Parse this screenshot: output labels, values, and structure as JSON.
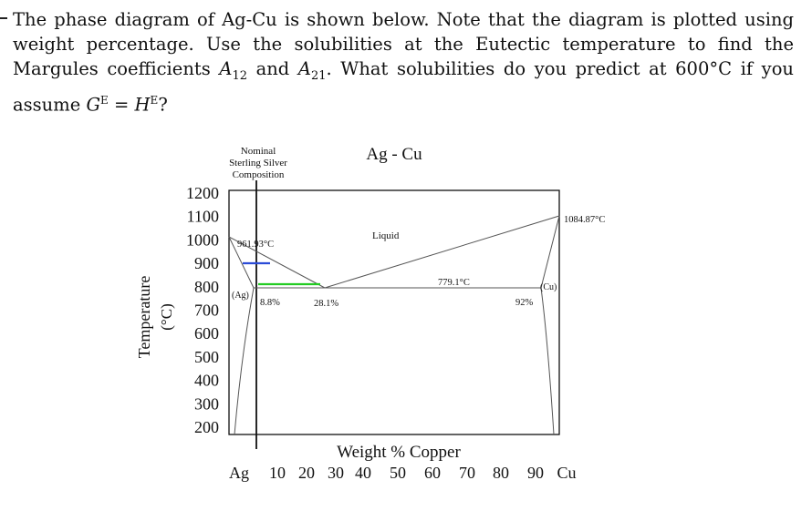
{
  "problem": {
    "text_part1": "The phase diagram of Ag-Cu is shown below. Note that the diagram is plotted using weight percentage. Use the solubilities at the Eutectic temperature to find the Margules coefficients ",
    "A12_base": "A",
    "A12_sub": "12",
    "and_text": " and ",
    "A21_base": "A",
    "A21_sub": "21",
    "text_part2": ". What solubilities do you predict at 600°C if you assume ",
    "GE_base": "G",
    "GE_sup": "E",
    "equals": " = ",
    "HE_base": "H",
    "HE_sup": "E",
    "end": "?"
  },
  "diagram": {
    "title": "Ag - Cu",
    "nominal_label": [
      "Nominal",
      "Sterling Silver",
      "Composition"
    ],
    "ylabel": "Temperature",
    "yunit": "(°C)",
    "xlabel": "Weight % Copper",
    "y_ticks": [
      "1200",
      "1100",
      "1000",
      "900",
      "800",
      "700",
      "600",
      "500",
      "400",
      "300",
      "200"
    ],
    "x_ticks": [
      "Ag",
      "10",
      "20",
      "30",
      "40",
      "50",
      "60",
      "70",
      "80",
      "90",
      "Cu"
    ],
    "annotations": {
      "ag_melt": "961.93°C",
      "cu_melt": "1084.87°C",
      "eutectic_temp": "779.1°C",
      "liquid": "Liquid",
      "ag_phase": "(Ag)",
      "cu_phase": "(Cu)",
      "ag_solubility": "8.8%",
      "eutectic_comp": "28.1%",
      "cu_solubility": "92%"
    },
    "colors": {
      "blue_tie_line": "#2a4bd7",
      "green_tie_line": "#22cc22"
    }
  }
}
